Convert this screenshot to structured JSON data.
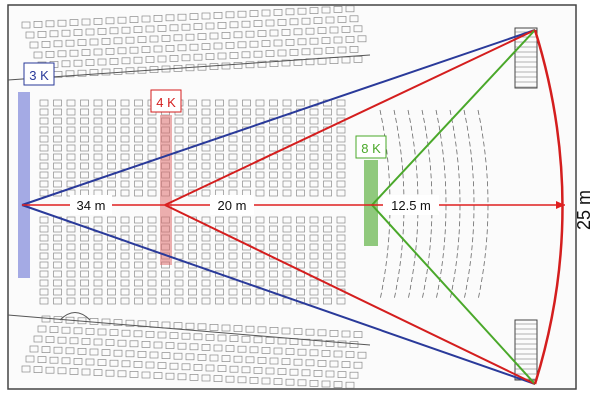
{
  "labels": {
    "zone_3k": "3 K",
    "zone_4k": "4 K",
    "zone_8k": "8 K",
    "dist_34": "34 m",
    "dist_20": "20 m",
    "dist_12_5": "12.5 m",
    "screen_width": "25 m"
  },
  "colors": {
    "zone_3k": "#2a3a9a",
    "zone_4k": "#d41e1e",
    "zone_8k": "#4aa82a",
    "measure": "#e02020",
    "plan_line": "#6a6a6a",
    "seat": "#8a8a8a"
  }
}
